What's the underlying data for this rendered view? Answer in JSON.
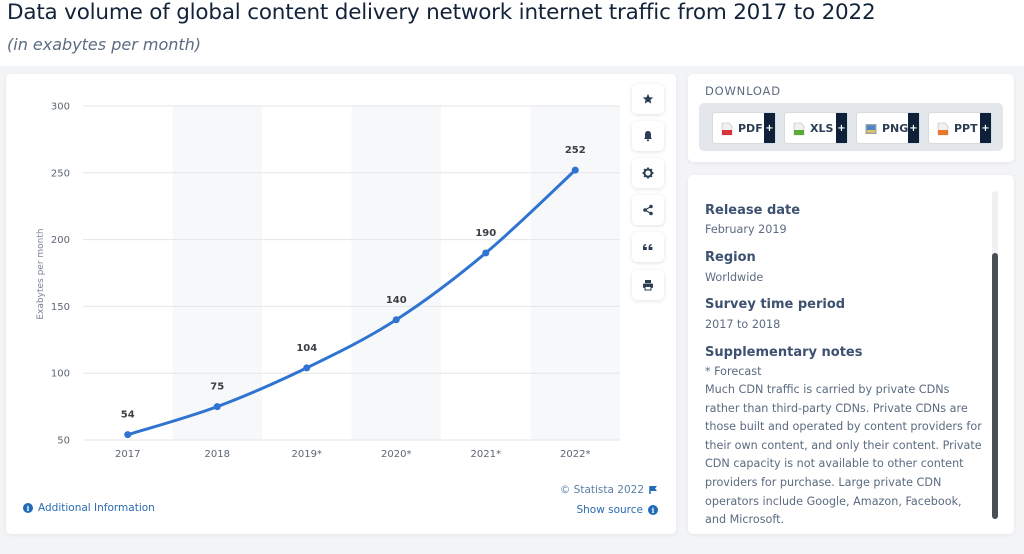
{
  "header": {
    "title": "Data volume of global content delivery network internet traffic from 2017 to 2022",
    "subtitle": "(in exabytes per month)"
  },
  "chart_data": {
    "type": "line",
    "title": "Data volume of global content delivery network internet traffic from 2017 to 2022",
    "subtitle": "(in exabytes per month)",
    "categories": [
      "2017",
      "2018",
      "2019*",
      "2020*",
      "2021*",
      "2022*"
    ],
    "series": [
      {
        "name": "Exabytes per month",
        "values": [
          54,
          75,
          104,
          140,
          190,
          252
        ],
        "color": "#2f74d0"
      }
    ],
    "data_labels": [
      "54",
      "75",
      "104",
      "140",
      "190",
      "252"
    ],
    "xlabel": "",
    "ylabel": "Exabytes per month",
    "ylim": [
      50,
      300
    ],
    "yticks": [
      50,
      100,
      150,
      200,
      250,
      300
    ],
    "ytick_labels": [
      "50",
      "100",
      "150",
      "200",
      "250",
      "300"
    ],
    "grid": true,
    "alternating_bands": true,
    "legend": "none"
  },
  "toolbar": {
    "buttons": [
      {
        "name": "favorite",
        "icon": "star-icon"
      },
      {
        "name": "notification",
        "icon": "bell-icon"
      },
      {
        "name": "settings",
        "icon": "gear-icon"
      },
      {
        "name": "share",
        "icon": "share-icon"
      },
      {
        "name": "cite",
        "icon": "quote-icon"
      },
      {
        "name": "print",
        "icon": "printer-icon"
      }
    ]
  },
  "footer": {
    "copyright": "© Statista 2022",
    "additional_info": "Additional Information",
    "show_source": "Show source"
  },
  "download": {
    "label": "DOWNLOAD",
    "buttons": [
      {
        "label": "PDF",
        "icon": "pdf-file-icon",
        "color": "#d9343c",
        "plus": "+"
      },
      {
        "label": "XLS",
        "icon": "xls-file-icon",
        "color": "#5aab35",
        "plus": "+"
      },
      {
        "label": "PNG",
        "icon": "png-file-icon",
        "color": "#4a86c8",
        "plus": "+"
      },
      {
        "label": "PPT",
        "icon": "ppt-file-icon",
        "color": "#e8792b",
        "plus": "+"
      }
    ]
  },
  "meta": {
    "release_date_label": "Release date",
    "release_date": "February 2019",
    "region_label": "Region",
    "region": "Worldwide",
    "survey_period_label": "Survey time period",
    "survey_period": "2017 to 2018",
    "notes_label": "Supplementary notes",
    "notes_forecast": "* Forecast",
    "notes_text": "Much CDN traffic is carried by private CDNs rather than third-party CDNs. Private CDNs are those built and operated by content providers for their own content, and only their content. Private CDN capacity is not available to other content providers for purchase. Large private CDN operators include Google, Amazon, Facebook, and Microsoft."
  }
}
